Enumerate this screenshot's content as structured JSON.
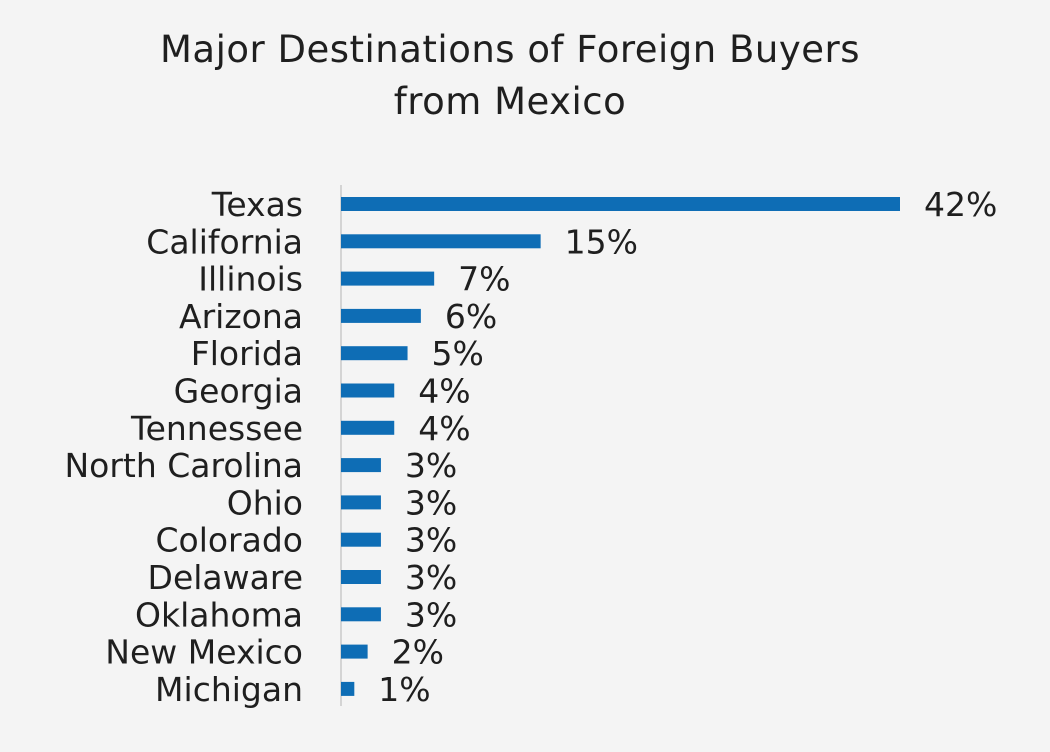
{
  "chart_data": {
    "type": "bar",
    "orientation": "horizontal",
    "title_line1": "Major Destinations of Foreign Buyers",
    "title_line2": "from Mexico",
    "categories": [
      "Texas",
      "California",
      "Illinois",
      "Arizona",
      "Florida",
      "Georgia",
      "Tennessee",
      "North Carolina",
      "Ohio",
      "Colorado",
      "Delaware",
      "Oklahoma",
      "New Mexico",
      "Michigan"
    ],
    "values": [
      42,
      15,
      7,
      6,
      5,
      4,
      4,
      3,
      3,
      3,
      3,
      3,
      2,
      1
    ],
    "value_labels": [
      "42%",
      "15%",
      "7%",
      "6%",
      "5%",
      "4%",
      "4%",
      "3%",
      "3%",
      "3%",
      "3%",
      "3%",
      "2%",
      "1%"
    ],
    "unit": "%",
    "bar_color": "#0e6db5",
    "axis_color": "#d4d4d4",
    "grid": false,
    "legend": "none"
  }
}
